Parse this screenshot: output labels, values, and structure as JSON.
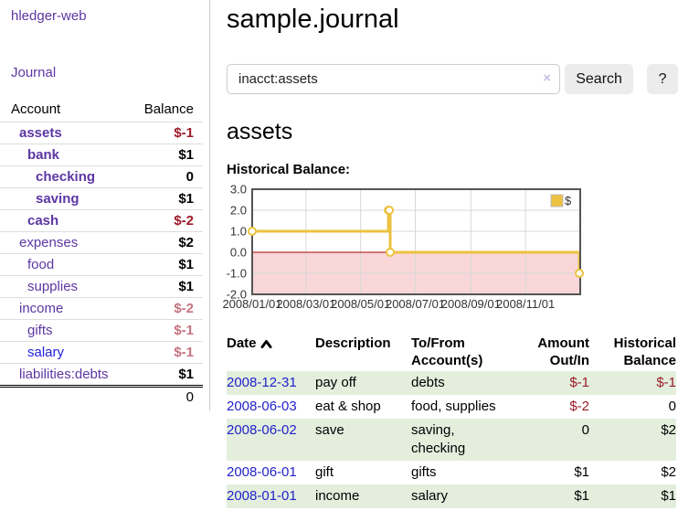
{
  "sidebar": {
    "brand": "hledger-web",
    "nav_journal": "Journal",
    "accounts_table": {
      "headers": {
        "account": "Account",
        "balance": "Balance"
      },
      "rows": [
        {
          "name": "assets",
          "level": 1,
          "bold": true,
          "balance": "$-1",
          "balance_style": "neg-strong"
        },
        {
          "name": "bank",
          "level": 2,
          "bold": true,
          "balance": "$1",
          "balance_style": ""
        },
        {
          "name": "checking",
          "level": 3,
          "bold": true,
          "balance": "0",
          "balance_style": ""
        },
        {
          "name": "saving",
          "level": 3,
          "bold": true,
          "balance": "$1",
          "balance_style": ""
        },
        {
          "name": "cash",
          "level": 2,
          "bold": true,
          "balance": "$-2",
          "balance_style": "neg-strong"
        },
        {
          "name": "expenses",
          "level": 1,
          "bold": false,
          "balance": "$2",
          "balance_style": ""
        },
        {
          "name": "food",
          "level": 2,
          "bold": false,
          "balance": "$1",
          "balance_style": ""
        },
        {
          "name": "supplies",
          "level": 2,
          "bold": false,
          "balance": "$1",
          "balance_style": ""
        },
        {
          "name": "income",
          "level": 1,
          "bold": false,
          "balance": "$-2",
          "balance_style": "neg-weak"
        },
        {
          "name": "gifts",
          "level": 2,
          "bold": false,
          "balance": "$-1",
          "balance_style": "neg-weak"
        },
        {
          "name": "salary",
          "level": 2,
          "bold": false,
          "balance": "$-1",
          "balance_style": "neg-weak",
          "link_style": "unvisited"
        },
        {
          "name": "liabilities:debts",
          "level": 1,
          "bold": false,
          "balance": "$1",
          "balance_style": ""
        }
      ],
      "total": "0"
    }
  },
  "main": {
    "title": "sample.journal",
    "search": {
      "value": "inacct:assets",
      "clear": "×",
      "button": "Search",
      "help": "?"
    },
    "account_heading": "assets",
    "chart_heading": "Historical Balance:",
    "transactions": {
      "headers": {
        "date": "Date",
        "description": "Description",
        "accounts": "To/From Account(s)",
        "amount": "Amount Out/In",
        "balance": "Historical Balance"
      },
      "sort": "ascending",
      "rows": [
        {
          "date": "2008-12-31",
          "description": "pay off",
          "accounts": "debts",
          "amount": "$-1",
          "amount_style": "neg",
          "balance": "$-1",
          "balance_style": "neg"
        },
        {
          "date": "2008-06-03",
          "description": "eat & shop",
          "accounts": "food, supplies",
          "amount": "$-2",
          "amount_style": "neg",
          "balance": "0",
          "balance_style": ""
        },
        {
          "date": "2008-06-02",
          "description": "save",
          "accounts": "saving, checking",
          "amount": "0",
          "amount_style": "",
          "balance": "$2",
          "balance_style": ""
        },
        {
          "date": "2008-06-01",
          "description": "gift",
          "accounts": "gifts",
          "amount": "$1",
          "amount_style": "",
          "balance": "$2",
          "balance_style": ""
        },
        {
          "date": "2008-01-01",
          "description": "income",
          "accounts": "salary",
          "amount": "$1",
          "amount_style": "",
          "balance": "$1",
          "balance_style": ""
        }
      ]
    }
  },
  "chart_data": {
    "type": "line",
    "title": "Historical Balance:",
    "series": [
      {
        "name": "$",
        "x": [
          "2008-01-01",
          "2008-06-01",
          "2008-06-02",
          "2008-06-03",
          "2008-12-31"
        ],
        "y": [
          1,
          2,
          2,
          0,
          -1
        ]
      }
    ],
    "step": true,
    "ylim": [
      -2,
      3
    ],
    "yticks": [
      3,
      2,
      1,
      0,
      -1,
      -2
    ],
    "xticks": [
      "2008/01/01",
      "2008/03/01",
      "2008/05/01",
      "2008/07/01",
      "2008/09/01",
      "2008/11/01"
    ],
    "xrange_days": 366,
    "grid": true,
    "legend": "$",
    "legend_position": "top-right",
    "colors": {
      "line": "#edc240",
      "marker_fill": "#ffffff",
      "negative_fill": "#f9d7d8",
      "zero_line": "#a40000",
      "border": "#545454",
      "gridline": "#d7d7d7",
      "tick_text": "#333333"
    }
  },
  "colors": {
    "visited_link_purple": "#5d36a4",
    "unvisited_link_blue": "#2222dd",
    "date_link_blue": "#2222cc",
    "negative_strong": "#9c1b28",
    "negative_weak": "#c4737f",
    "row_stripe_green": "#e3eedd",
    "button_gray": "#ececec"
  }
}
